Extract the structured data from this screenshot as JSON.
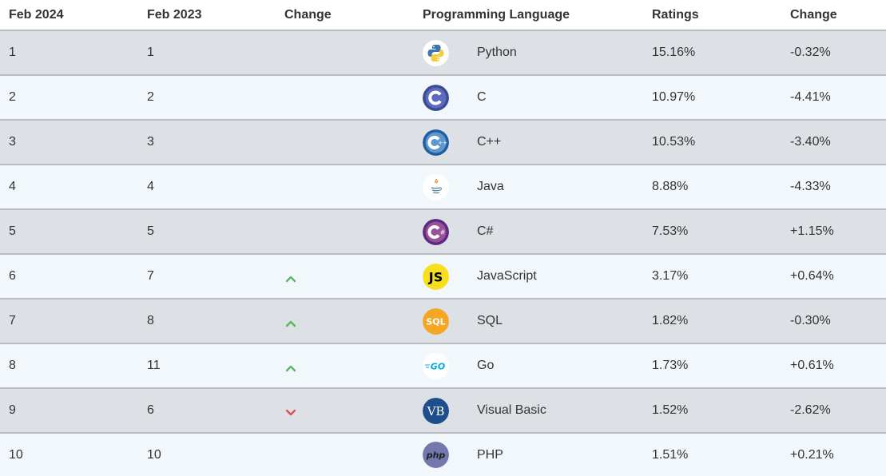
{
  "header": {
    "col1": "Feb 2024",
    "col2": "Feb 2023",
    "col3": "Change",
    "col4": "Programming Language",
    "col5": "Ratings",
    "col6": "Change"
  },
  "rows": [
    {
      "rank_2024": "1",
      "rank_2023": "1",
      "trend": "none",
      "language": "Python",
      "icon": "python-logo-icon",
      "rating": "15.16%",
      "change": "-0.32%"
    },
    {
      "rank_2024": "2",
      "rank_2023": "2",
      "trend": "none",
      "language": "C",
      "icon": "c-logo-icon",
      "rating": "10.97%",
      "change": "-4.41%"
    },
    {
      "rank_2024": "3",
      "rank_2023": "3",
      "trend": "none",
      "language": "C++",
      "icon": "cpp-logo-icon",
      "rating": "10.53%",
      "change": "-3.40%"
    },
    {
      "rank_2024": "4",
      "rank_2023": "4",
      "trend": "none",
      "language": "Java",
      "icon": "java-logo-icon",
      "rating": "8.88%",
      "change": "-4.33%"
    },
    {
      "rank_2024": "5",
      "rank_2023": "5",
      "trend": "none",
      "language": "C#",
      "icon": "csharp-logo-icon",
      "rating": "7.53%",
      "change": "+1.15%"
    },
    {
      "rank_2024": "6",
      "rank_2023": "7",
      "trend": "up",
      "language": "JavaScript",
      "icon": "javascript-logo-icon",
      "rating": "3.17%",
      "change": "+0.64%"
    },
    {
      "rank_2024": "7",
      "rank_2023": "8",
      "trend": "up",
      "language": "SQL",
      "icon": "sql-logo-icon",
      "rating": "1.82%",
      "change": "-0.30%"
    },
    {
      "rank_2024": "8",
      "rank_2023": "11",
      "trend": "up",
      "language": "Go",
      "icon": "go-logo-icon",
      "rating": "1.73%",
      "change": "+0.61%"
    },
    {
      "rank_2024": "9",
      "rank_2023": "6",
      "trend": "down",
      "language": "Visual Basic",
      "icon": "visual-basic-logo-icon",
      "rating": "1.52%",
      "change": "-2.62%"
    },
    {
      "rank_2024": "10",
      "rank_2023": "10",
      "trend": "none",
      "language": "PHP",
      "icon": "php-logo-icon",
      "rating": "1.51%",
      "change": "+0.21%"
    }
  ],
  "icon_text": {
    "js": "JS",
    "sql": "SQL",
    "go": "GO",
    "vb": "VB",
    "php": "php"
  },
  "colors": {
    "row_odd": "#dde1e5",
    "row_even": "#f2f7fb",
    "up_arrow": "#5cb85c",
    "down_arrow": "#d9534f"
  }
}
